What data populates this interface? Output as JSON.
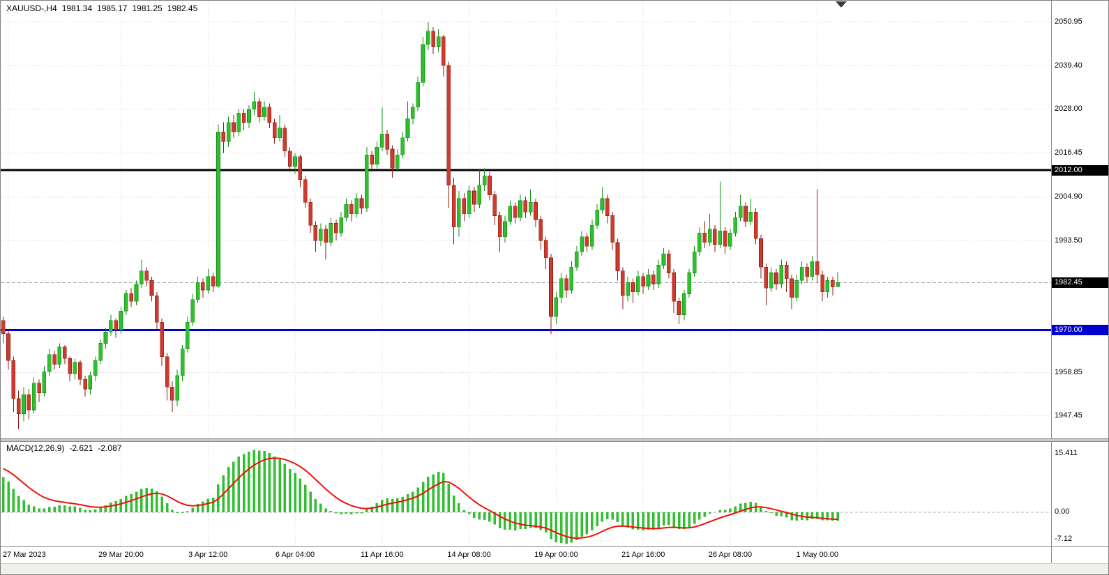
{
  "header": {
    "symbol_period": "XAUUSD-,H4",
    "open": "1981.34",
    "high": "1985.17",
    "low": "1981.25",
    "close": "1982.45"
  },
  "colors": {
    "bull": "#2FBF2F",
    "bull_stroke": "#0E8F0E",
    "bear": "#CF3A2E",
    "bear_stroke": "#8F1A10",
    "hist": "#2FBF2F",
    "signal": "#F01005",
    "level_black": "#000000",
    "level_blue": "#0000CD",
    "grid": "#D8D8D8",
    "current_line": "#AAAAAA",
    "badge_text": "#FFFFFF"
  },
  "price_axis": {
    "badges": [
      {
        "text": "2012.00",
        "value": 2012.0,
        "style": "black"
      },
      {
        "text": "1982.45",
        "value": 1982.45,
        "style": "black"
      },
      {
        "text": "1970.00",
        "value": 1970.0,
        "style": "blue"
      }
    ]
  },
  "chart_data": {
    "type": "candlestick",
    "symbol": "XAUUSD-",
    "timeframe": "H4",
    "title": "XAUUSD-,H4",
    "y_axis_range": [
      1941.5,
      2056.5
    ],
    "y_ticks": [
      {
        "text": "2050.95",
        "value": 2050.95
      },
      {
        "text": "2039.40",
        "value": 2039.4
      },
      {
        "text": "2028.00",
        "value": 2028.0
      },
      {
        "text": "2016.45",
        "value": 2016.45
      },
      {
        "text": "2004.90",
        "value": 2004.9
      },
      {
        "text": "1993.50",
        "value": 1993.5
      },
      {
        "text": "1958.85",
        "value": 1958.85
      },
      {
        "text": "1947.45",
        "value": 1947.45
      }
    ],
    "x_ticks": [
      {
        "text": "27 Mar 2023",
        "bar": 1
      },
      {
        "text": "29 Mar 20:00",
        "bar": 23
      },
      {
        "text": "3 Apr 12:00",
        "bar": 40
      },
      {
        "text": "6 Apr 04:00",
        "bar": 57
      },
      {
        "text": "11 Apr 16:00",
        "bar": 74
      },
      {
        "text": "14 Apr 08:00",
        "bar": 91
      },
      {
        "text": "19 Apr 00:00",
        "bar": 108
      },
      {
        "text": "21 Apr 16:00",
        "bar": 125
      },
      {
        "text": "26 Apr 08:00",
        "bar": 142
      },
      {
        "text": "1 May 00:00",
        "bar": 159
      }
    ],
    "levels": {
      "resistance_black": 2012.0,
      "support_blue": 1970.0,
      "current_price": 1982.45
    },
    "candles": [
      [
        1972.5,
        1973.5,
        1966.5,
        1969
      ],
      [
        1969,
        1970,
        1959.5,
        1962
      ],
      [
        1962,
        1963,
        1948.5,
        1952
      ],
      [
        1952,
        1954,
        1944,
        1948
      ],
      [
        1948,
        1955,
        1946,
        1953
      ],
      [
        1953,
        1954.5,
        1946.5,
        1949
      ],
      [
        1949,
        1957.5,
        1948,
        1956
      ],
      [
        1956,
        1957,
        1951,
        1953.5
      ],
      [
        1953.5,
        1960.5,
        1952.5,
        1959
      ],
      [
        1959,
        1965,
        1958,
        1963.5
      ],
      [
        1963.5,
        1964.5,
        1959.5,
        1961
      ],
      [
        1961,
        1966.5,
        1960,
        1965.5
      ],
      [
        1965.5,
        1966,
        1961,
        1962.5
      ],
      [
        1962.5,
        1963,
        1956.5,
        1958.5
      ],
      [
        1958.5,
        1962.5,
        1957,
        1961.5
      ],
      [
        1961.5,
        1962,
        1955.5,
        1957
      ],
      [
        1957,
        1958,
        1952.5,
        1954.5
      ],
      [
        1954.5,
        1959,
        1953,
        1958
      ],
      [
        1958,
        1963,
        1956.5,
        1962
      ],
      [
        1962,
        1967.5,
        1961,
        1966.5
      ],
      [
        1966.5,
        1970.5,
        1965,
        1969.5
      ],
      [
        1969.5,
        1974,
        1968.5,
        1972.5
      ],
      [
        1972.5,
        1973,
        1968,
        1970
      ],
      [
        1970,
        1976,
        1969,
        1975
      ],
      [
        1975,
        1980.5,
        1974,
        1979.5
      ],
      [
        1979.5,
        1981,
        1976,
        1977.5
      ],
      [
        1977.5,
        1983,
        1976.5,
        1982
      ],
      [
        1982,
        1988.5,
        1981,
        1985.5
      ],
      [
        1985.5,
        1986.5,
        1981.5,
        1983
      ],
      [
        1983,
        1984,
        1977.5,
        1979
      ],
      [
        1979,
        1980,
        1970,
        1972
      ],
      [
        1972,
        1973,
        1960.5,
        1963
      ],
      [
        1963,
        1964,
        1951.5,
        1955
      ],
      [
        1955,
        1956.5,
        1948.5,
        1951.5
      ],
      [
        1951.5,
        1959.5,
        1950,
        1958
      ],
      [
        1958,
        1966,
        1956.5,
        1965
      ],
      [
        1965,
        1973.5,
        1964,
        1972
      ],
      [
        1972,
        1979.5,
        1971,
        1978
      ],
      [
        1978,
        1984,
        1977,
        1982.5
      ],
      [
        1982.5,
        1983.5,
        1978.5,
        1980.5
      ],
      [
        1980.5,
        1986,
        1979.5,
        1984
      ],
      [
        1984,
        1985,
        1980,
        1981.5
      ],
      [
        1981.5,
        2024,
        1981,
        2022
      ],
      [
        2022,
        2024.5,
        2016.5,
        2019.5
      ],
      [
        2019.5,
        2026,
        2018,
        2024.5
      ],
      [
        2024.5,
        2026.5,
        2020.5,
        2022
      ],
      [
        2022,
        2028,
        2021,
        2027
      ],
      [
        2027,
        2028,
        2022.5,
        2024.5
      ],
      [
        2024.5,
        2029,
        2023,
        2028
      ],
      [
        2028,
        2032.5,
        2026.5,
        2030
      ],
      [
        2030,
        2031,
        2024.5,
        2026
      ],
      [
        2026,
        2030,
        2025,
        2028.5
      ],
      [
        2028.5,
        2029.5,
        2023,
        2024.5
      ],
      [
        2024.5,
        2025.5,
        2019,
        2020.5
      ],
      [
        2020.5,
        2026.5,
        2019.5,
        2023
      ],
      [
        2023,
        2024,
        2015.5,
        2017
      ],
      [
        2017,
        2018,
        2011.5,
        2013
      ],
      [
        2013,
        2016.5,
        2011,
        2015.5
      ],
      [
        2015.5,
        2016,
        2007.5,
        2009.5
      ],
      [
        2009.5,
        2010.5,
        2002,
        2003.5
      ],
      [
        2003.5,
        2004.5,
        1995.5,
        1997.5
      ],
      [
        1997.5,
        1998.5,
        1990.5,
        1993.5
      ],
      [
        1993.5,
        1998,
        1992,
        1996.5
      ],
      [
        1996.5,
        1997.5,
        1988.5,
        1993
      ],
      [
        1993,
        1999.5,
        1992,
        1998
      ],
      [
        1998,
        1999,
        1993.5,
        1995.5
      ],
      [
        1995.5,
        2001,
        1994.5,
        1999.5
      ],
      [
        1999.5,
        2004.5,
        1998.5,
        2003
      ],
      [
        2003,
        2004,
        1998.5,
        2000.5
      ],
      [
        2000.5,
        2006,
        1999.5,
        2004.5
      ],
      [
        2004.5,
        2005.5,
        2000.5,
        2002
      ],
      [
        2002,
        2018,
        2001,
        2016
      ],
      [
        2016,
        2017,
        2011.5,
        2013.5
      ],
      [
        2013.5,
        2019.5,
        2012.5,
        2018
      ],
      [
        2018,
        2028.5,
        2017,
        2021.5
      ],
      [
        2021.5,
        2022.5,
        2016,
        2017.5
      ],
      [
        2017.5,
        2018.5,
        2010,
        2012.5
      ],
      [
        2012.5,
        2017.5,
        2011.5,
        2016
      ],
      [
        2016,
        2022,
        2015,
        2020.5
      ],
      [
        2020.5,
        2030,
        2019.5,
        2025.5
      ],
      [
        2025.5,
        2029.5,
        2024,
        2028.5
      ],
      [
        2028.5,
        2036.5,
        2027.5,
        2035
      ],
      [
        2035,
        2047,
        2034,
        2045
      ],
      [
        2045,
        2050.95,
        2043.5,
        2048.5
      ],
      [
        2048.5,
        2049.5,
        2042.5,
        2044.5
      ],
      [
        2044.5,
        2049,
        2043,
        2047
      ],
      [
        2047,
        2047.5,
        2036.5,
        2039.5
      ],
      [
        2039.5,
        2040.5,
        2002,
        2008
      ],
      [
        2008,
        2010,
        1992.5,
        1997
      ],
      [
        1997,
        2006.5,
        1994.5,
        2004.5
      ],
      [
        2004.5,
        2006,
        1998.5,
        2000.5
      ],
      [
        2000.5,
        2008,
        1999.5,
        2006.5
      ],
      [
        2006.5,
        2007.5,
        2001,
        2003
      ],
      [
        2003,
        2012,
        2002,
        2008
      ],
      [
        2008,
        2012.5,
        2006.5,
        2010.5
      ],
      [
        2010.5,
        2011.5,
        2004,
        2005.5
      ],
      [
        2005.5,
        2006.5,
        1997.5,
        2000
      ],
      [
        2000,
        2001,
        1990.5,
        1994.5
      ],
      [
        1994.5,
        2000,
        1993,
        1998.5
      ],
      [
        1998.5,
        2004,
        1997.5,
        2002.5
      ],
      [
        2002.5,
        2003.5,
        1998,
        1999.5
      ],
      [
        1999.5,
        2005.5,
        1998.5,
        2004
      ],
      [
        2004,
        2005,
        1999.5,
        2001
      ],
      [
        2001,
        2007,
        2000,
        2003.5
      ],
      [
        2003.5,
        2004.5,
        1997,
        1999
      ],
      [
        1999,
        2000,
        1991,
        1993.5
      ],
      [
        1993.5,
        1994.5,
        1986,
        1989
      ],
      [
        1989,
        1990,
        1969,
        1973.5
      ],
      [
        1973.5,
        1980,
        1971.5,
        1978.5
      ],
      [
        1978.5,
        1985,
        1977,
        1983.5
      ],
      [
        1983.5,
        1984.5,
        1978.5,
        1980.5
      ],
      [
        1980.5,
        1988,
        1979.5,
        1986.5
      ],
      [
        1986.5,
        1992,
        1985.5,
        1990.5
      ],
      [
        1990.5,
        1996,
        1989.5,
        1994.5
      ],
      [
        1994.5,
        1995.5,
        1990.5,
        1992
      ],
      [
        1992,
        1999,
        1991,
        1997.5
      ],
      [
        1997.5,
        2003,
        1996.5,
        2001.5
      ],
      [
        2001.5,
        2007.5,
        2000.5,
        2004.5
      ],
      [
        2004.5,
        2005.5,
        1998,
        2000
      ],
      [
        2000,
        2001,
        1991,
        1993
      ],
      [
        1993,
        1994,
        1983,
        1985.5
      ],
      [
        1985.5,
        1986.5,
        1975.5,
        1979
      ],
      [
        1979,
        1984,
        1977.5,
        1982.5
      ],
      [
        1982.5,
        1983.5,
        1977,
        1980
      ],
      [
        1980,
        1985.5,
        1979,
        1984
      ],
      [
        1984,
        1985,
        1979.5,
        1981.5
      ],
      [
        1981.5,
        1986,
        1980.5,
        1984.5
      ],
      [
        1984.5,
        1985.5,
        1980.5,
        1982
      ],
      [
        1982,
        1988.5,
        1981,
        1987
      ],
      [
        1987,
        1991.5,
        1986,
        1990
      ],
      [
        1990,
        1991,
        1983.5,
        1985
      ],
      [
        1985,
        1986,
        1974.5,
        1977.5
      ],
      [
        1977.5,
        1978.5,
        1971.5,
        1974
      ],
      [
        1974,
        1980.5,
        1972.5,
        1979.5
      ],
      [
        1979.5,
        1986,
        1978.5,
        1985
      ],
      [
        1985,
        1992,
        1984,
        1990.5
      ],
      [
        1990.5,
        1997,
        1989.5,
        1995.5
      ],
      [
        1995.5,
        1998.5,
        1991.5,
        1993
      ],
      [
        1993,
        2000.5,
        1992,
        1996.5
      ],
      [
        1996.5,
        1997.5,
        1990.5,
        1992.5
      ],
      [
        1992.5,
        2009,
        1991.5,
        1996
      ],
      [
        1996,
        1997,
        1990,
        1992
      ],
      [
        1992,
        1996.5,
        1991,
        1995.5
      ],
      [
        1995.5,
        2001,
        1994.5,
        1999.5
      ],
      [
        1999.5,
        2005.5,
        1998.5,
        2002.5
      ],
      [
        2002.5,
        2003.5,
        1997,
        1998.5
      ],
      [
        1998.5,
        2004.5,
        1997.5,
        2001
      ],
      [
        2001,
        2002,
        1992.5,
        1994
      ],
      [
        1994,
        1995,
        1983.5,
        1986.5
      ],
      [
        1986.5,
        1987.5,
        1976.5,
        1981
      ],
      [
        1981,
        1986.5,
        1980,
        1985
      ],
      [
        1985,
        1986,
        1980.5,
        1982
      ],
      [
        1982,
        1988.5,
        1981,
        1987
      ],
      [
        1987,
        1988,
        1980,
        1983.5
      ],
      [
        1983.5,
        1984.5,
        1975.5,
        1978.5
      ],
      [
        1978.5,
        1984.5,
        1977.5,
        1983
      ],
      [
        1983,
        1988,
        1982,
        1986.5
      ],
      [
        1986.5,
        1987.5,
        1982.5,
        1984
      ],
      [
        1984,
        1989.5,
        1983,
        1988
      ],
      [
        1988,
        2007,
        1982.5,
        1984.5
      ],
      [
        1984.5,
        1985.5,
        1977.5,
        1980
      ],
      [
        1980,
        1984,
        1978.5,
        1983
      ],
      [
        1983,
        1984,
        1979,
        1981.3
      ],
      [
        1981.34,
        1985.17,
        1981.25,
        1982.45
      ]
    ],
    "indicator": {
      "name_label": "MACD(12,26,9)",
      "main_value_label": "-2.621",
      "signal_value_label": "-2.087",
      "params": {
        "fast": 12,
        "slow": 26,
        "signal": 9
      },
      "axis": {
        "max": 15.411,
        "max_label": "15.411",
        "zero_label": "0.00",
        "min": -7.12,
        "min_label": "-7.12"
      },
      "seed": {
        "fast_offset": 0,
        "slow_offset": -10,
        "signal_start": 12
      }
    }
  }
}
